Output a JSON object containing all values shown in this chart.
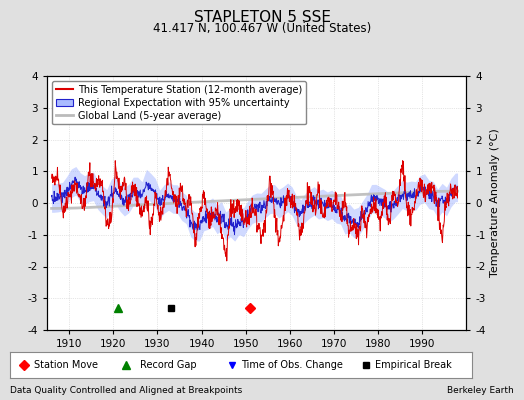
{
  "title": "STAPLETON 5 SSE",
  "subtitle": "41.417 N, 100.467 W (United States)",
  "xlabel_years": [
    1910,
    1920,
    1930,
    1940,
    1950,
    1960,
    1970,
    1980,
    1990
  ],
  "ylabel": "Temperature Anomaly (°C)",
  "ylim": [
    -4,
    4
  ],
  "xlim": [
    1905,
    2000
  ],
  "yticks": [
    -4,
    -3,
    -2,
    -1,
    0,
    1,
    2,
    3,
    4
  ],
  "footer_left": "Data Quality Controlled and Aligned at Breakpoints",
  "footer_right": "Berkeley Earth",
  "legend_items": [
    "This Temperature Station (12-month average)",
    "Regional Expectation with 95% uncertainty",
    "Global Land (5-year average)"
  ],
  "marker_events": {
    "station_move": [
      1951
    ],
    "record_gap": [
      1921
    ],
    "time_of_obs": [],
    "empirical_break": [
      1933
    ]
  },
  "background_color": "#e0e0e0",
  "plot_bg_color": "#ffffff",
  "red_color": "#dd0000",
  "blue_color": "#2222cc",
  "blue_fill_color": "#aabbff",
  "gray_color": "#bbbbbb",
  "seed": 12345
}
